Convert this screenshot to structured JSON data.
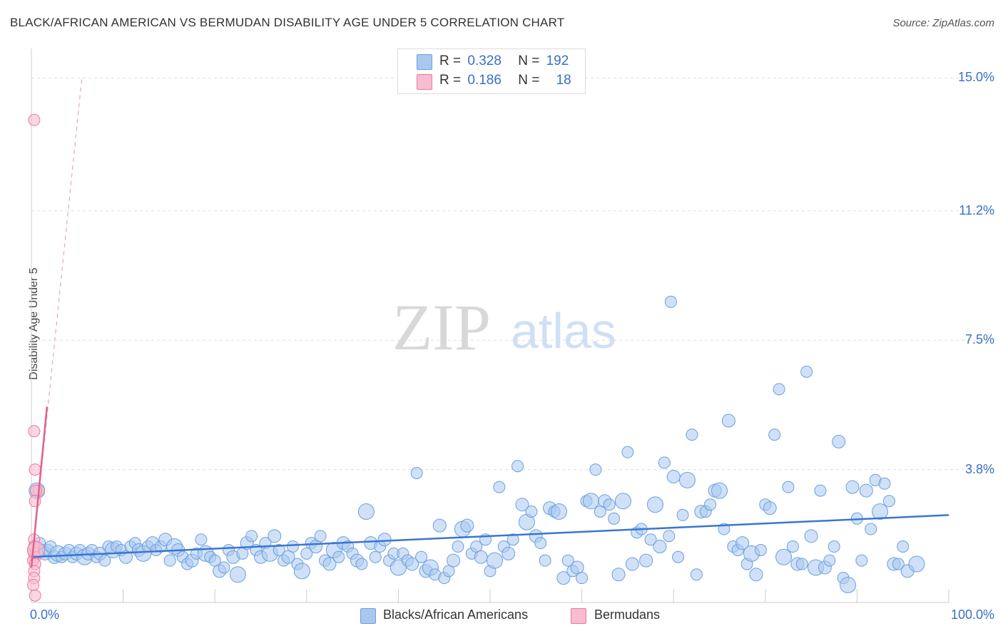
{
  "title": "BLACK/AFRICAN AMERICAN VS BERMUDAN DISABILITY AGE UNDER 5 CORRELATION CHART",
  "source": "Source: ZipAtlas.com",
  "watermark": {
    "zip": "ZIP",
    "atlas": "atlas"
  },
  "legend": {
    "rows": [
      {
        "r_label": "R =",
        "r_value": "0.328",
        "n_label": "N =",
        "n_value": "192",
        "color": "#a9c8f0"
      },
      {
        "r_label": "R =",
        "r_value": "0.186",
        "n_label": "N =",
        "n_value": "18",
        "color": "#f9bcd0"
      }
    ]
  },
  "bottom_legend": [
    {
      "label": "Blacks/African Americans",
      "color": "#a9c8f0"
    },
    {
      "label": "Bermudans",
      "color": "#f9bcd0"
    }
  ],
  "colors": {
    "blue": "#6a9fe0",
    "blue_fill": "#a9c8f0",
    "blue_line": "#3a76d0",
    "pink": "#e8799f",
    "pink_fill": "#f9bcd0",
    "pink_line": "#e3608e",
    "axis_text": "#3a6fc9"
  },
  "chart_data": {
    "type": "scatter",
    "title": "BLACK/AFRICAN AMERICAN VS BERMUDAN DISABILITY AGE UNDER 5 CORRELATION CHART",
    "xlabel": "",
    "ylabel": "Disability Age Under 5",
    "xlim": [
      0,
      100
    ],
    "ylim": [
      0,
      15.0
    ],
    "x_tick_labels": [
      "0.0%",
      "100.0%"
    ],
    "y_ticks": [
      3.8,
      7.5,
      11.2,
      15.0
    ],
    "y_tick_labels": [
      "3.8%",
      "7.5%",
      "11.2%",
      "15.0%"
    ],
    "series": [
      {
        "name": "Blacks/African Americans",
        "R": 0.328,
        "N": 192,
        "trend": {
          "x": [
            0,
            100
          ],
          "y": [
            1.3,
            2.5
          ]
        },
        "points": [
          [
            0.6,
            3.2
          ],
          [
            0.9,
            1.7
          ],
          [
            1.2,
            1.5
          ],
          [
            1.5,
            1.4
          ],
          [
            1.8,
            1.5
          ],
          [
            2.1,
            1.6
          ],
          [
            2.5,
            1.3
          ],
          [
            2.9,
            1.4
          ],
          [
            3.3,
            1.3
          ],
          [
            3.7,
            1.4
          ],
          [
            4.1,
            1.5
          ],
          [
            4.5,
            1.3
          ],
          [
            4.9,
            1.4
          ],
          [
            5.3,
            1.5
          ],
          [
            5.8,
            1.3
          ],
          [
            6.2,
            1.4
          ],
          [
            6.6,
            1.5
          ],
          [
            7.1,
            1.3
          ],
          [
            7.5,
            1.4
          ],
          [
            8.0,
            1.2
          ],
          [
            8.4,
            1.6
          ],
          [
            8.9,
            1.5
          ],
          [
            9.3,
            1.6
          ],
          [
            9.8,
            1.5
          ],
          [
            10.3,
            1.3
          ],
          [
            10.8,
            1.6
          ],
          [
            11.3,
            1.7
          ],
          [
            11.7,
            1.5
          ],
          [
            12.2,
            1.4
          ],
          [
            12.7,
            1.6
          ],
          [
            13.2,
            1.7
          ],
          [
            13.6,
            1.5
          ],
          [
            14.1,
            1.6
          ],
          [
            14.6,
            1.8
          ],
          [
            15.1,
            1.2
          ],
          [
            15.6,
            1.6
          ],
          [
            16.0,
            1.5
          ],
          [
            16.5,
            1.3
          ],
          [
            17.0,
            1.1
          ],
          [
            17.5,
            1.2
          ],
          [
            18.0,
            1.4
          ],
          [
            18.5,
            1.8
          ],
          [
            19.0,
            1.4
          ],
          [
            19.5,
            1.3
          ],
          [
            20.0,
            1.2
          ],
          [
            20.5,
            0.9
          ],
          [
            21.0,
            1.0
          ],
          [
            21.5,
            1.5
          ],
          [
            22.0,
            1.3
          ],
          [
            22.5,
            0.8
          ],
          [
            23.0,
            1.4
          ],
          [
            23.5,
            1.7
          ],
          [
            24.0,
            1.9
          ],
          [
            24.5,
            1.5
          ],
          [
            25.0,
            1.3
          ],
          [
            25.5,
            1.7
          ],
          [
            26.0,
            1.4
          ],
          [
            26.5,
            1.9
          ],
          [
            27.0,
            1.5
          ],
          [
            27.5,
            1.2
          ],
          [
            28.0,
            1.3
          ],
          [
            28.5,
            1.6
          ],
          [
            29.0,
            1.1
          ],
          [
            29.5,
            0.9
          ],
          [
            30.0,
            1.4
          ],
          [
            30.5,
            1.7
          ],
          [
            31.0,
            1.6
          ],
          [
            31.5,
            1.9
          ],
          [
            32.0,
            1.2
          ],
          [
            32.5,
            1.1
          ],
          [
            33.0,
            1.5
          ],
          [
            33.5,
            1.3
          ],
          [
            34.0,
            1.7
          ],
          [
            34.5,
            1.6
          ],
          [
            35.0,
            1.4
          ],
          [
            35.5,
            1.2
          ],
          [
            36.0,
            1.1
          ],
          [
            36.5,
            2.6
          ],
          [
            37.0,
            1.7
          ],
          [
            37.5,
            1.3
          ],
          [
            38.0,
            1.6
          ],
          [
            38.5,
            1.8
          ],
          [
            39.0,
            1.2
          ],
          [
            39.5,
            1.4
          ],
          [
            40.0,
            1.0
          ],
          [
            40.5,
            1.4
          ],
          [
            41.0,
            1.2
          ],
          [
            41.5,
            1.1
          ],
          [
            42.0,
            3.7
          ],
          [
            42.5,
            1.3
          ],
          [
            43.0,
            0.9
          ],
          [
            43.5,
            1.0
          ],
          [
            44.0,
            0.8
          ],
          [
            44.5,
            2.2
          ],
          [
            45.0,
            0.7
          ],
          [
            45.5,
            0.9
          ],
          [
            46.0,
            1.2
          ],
          [
            46.5,
            1.6
          ],
          [
            47.0,
            2.1
          ],
          [
            47.5,
            2.2
          ],
          [
            48.0,
            1.4
          ],
          [
            48.5,
            1.6
          ],
          [
            49.0,
            1.3
          ],
          [
            49.5,
            1.8
          ],
          [
            50.0,
            0.9
          ],
          [
            50.5,
            1.2
          ],
          [
            51.0,
            3.3
          ],
          [
            51.5,
            1.6
          ],
          [
            52.0,
            1.4
          ],
          [
            52.5,
            1.8
          ],
          [
            53.0,
            3.9
          ],
          [
            53.5,
            2.8
          ],
          [
            54.0,
            2.3
          ],
          [
            54.5,
            2.6
          ],
          [
            55.0,
            1.9
          ],
          [
            55.5,
            1.7
          ],
          [
            56.0,
            1.2
          ],
          [
            56.5,
            2.7
          ],
          [
            57.0,
            2.6
          ],
          [
            57.5,
            2.6
          ],
          [
            58.0,
            0.7
          ],
          [
            58.5,
            1.2
          ],
          [
            59.0,
            0.9
          ],
          [
            59.5,
            1.0
          ],
          [
            60.0,
            0.7
          ],
          [
            60.5,
            2.9
          ],
          [
            61.0,
            2.9
          ],
          [
            61.5,
            3.8
          ],
          [
            62.0,
            2.6
          ],
          [
            62.5,
            2.9
          ],
          [
            63.0,
            2.8
          ],
          [
            63.5,
            2.4
          ],
          [
            64.0,
            0.8
          ],
          [
            64.5,
            2.9
          ],
          [
            65.0,
            4.3
          ],
          [
            65.5,
            1.1
          ],
          [
            66.0,
            2.0
          ],
          [
            66.5,
            2.1
          ],
          [
            67.0,
            1.2
          ],
          [
            67.5,
            1.8
          ],
          [
            68.0,
            2.8
          ],
          [
            68.5,
            1.6
          ],
          [
            69.0,
            4.0
          ],
          [
            69.5,
            1.9
          ],
          [
            70.0,
            3.6
          ],
          [
            70.5,
            1.3
          ],
          [
            71.0,
            2.5
          ],
          [
            71.5,
            3.5
          ],
          [
            72.0,
            4.8
          ],
          [
            72.5,
            0.8
          ],
          [
            73.0,
            2.6
          ],
          [
            73.5,
            2.6
          ],
          [
            74.0,
            2.8
          ],
          [
            74.5,
            3.2
          ],
          [
            75.0,
            3.2
          ],
          [
            75.5,
            2.1
          ],
          [
            76.0,
            5.2
          ],
          [
            76.5,
            1.6
          ],
          [
            77.0,
            1.5
          ],
          [
            77.5,
            1.7
          ],
          [
            78.0,
            1.1
          ],
          [
            78.5,
            1.4
          ],
          [
            79.0,
            0.8
          ],
          [
            79.5,
            1.5
          ],
          [
            80.0,
            2.8
          ],
          [
            80.5,
            2.7
          ],
          [
            81.0,
            4.8
          ],
          [
            81.5,
            6.1
          ],
          [
            82.0,
            1.3
          ],
          [
            82.5,
            3.3
          ],
          [
            83.0,
            1.6
          ],
          [
            83.5,
            1.1
          ],
          [
            84.0,
            1.1
          ],
          [
            84.5,
            6.6
          ],
          [
            85.0,
            1.9
          ],
          [
            85.5,
            1.0
          ],
          [
            86.0,
            3.2
          ],
          [
            86.5,
            1.0
          ],
          [
            87.0,
            1.2
          ],
          [
            87.5,
            1.6
          ],
          [
            88.0,
            4.6
          ],
          [
            88.5,
            0.7
          ],
          [
            89.0,
            0.5
          ],
          [
            89.5,
            3.3
          ],
          [
            90.0,
            2.4
          ],
          [
            90.5,
            1.2
          ],
          [
            91.0,
            3.2
          ],
          [
            91.5,
            2.1
          ],
          [
            92.0,
            3.5
          ],
          [
            92.5,
            2.6
          ],
          [
            93.0,
            3.4
          ],
          [
            93.5,
            2.9
          ],
          [
            94.0,
            1.1
          ],
          [
            94.5,
            1.1
          ],
          [
            95.0,
            1.6
          ],
          [
            95.5,
            0.9
          ],
          [
            96.5,
            1.1
          ],
          [
            69.7,
            8.6
          ]
        ]
      },
      {
        "name": "Bermudans",
        "R": 0.186,
        "N": 18,
        "trend": {
          "x": [
            0,
            1.7
          ],
          "y": [
            1.0,
            5.6
          ]
        },
        "trend_extended": {
          "x": [
            0,
            5.5
          ],
          "y": [
            1.0,
            15.0
          ]
        },
        "points": [
          [
            0.3,
            13.8
          ],
          [
            0.3,
            4.9
          ],
          [
            0.4,
            3.8
          ],
          [
            0.8,
            3.2
          ],
          [
            0.5,
            3.2
          ],
          [
            0.4,
            2.9
          ],
          [
            0.3,
            1.8
          ],
          [
            0.2,
            1.5
          ],
          [
            0.3,
            1.4
          ],
          [
            0.4,
            1.3
          ],
          [
            0.2,
            1.2
          ],
          [
            0.3,
            1.6
          ],
          [
            0.4,
            1.1
          ],
          [
            0.3,
            0.9
          ],
          [
            0.3,
            0.7
          ],
          [
            0.2,
            0.5
          ],
          [
            0.4,
            0.2
          ],
          [
            0.5,
            1.5
          ]
        ]
      }
    ]
  }
}
